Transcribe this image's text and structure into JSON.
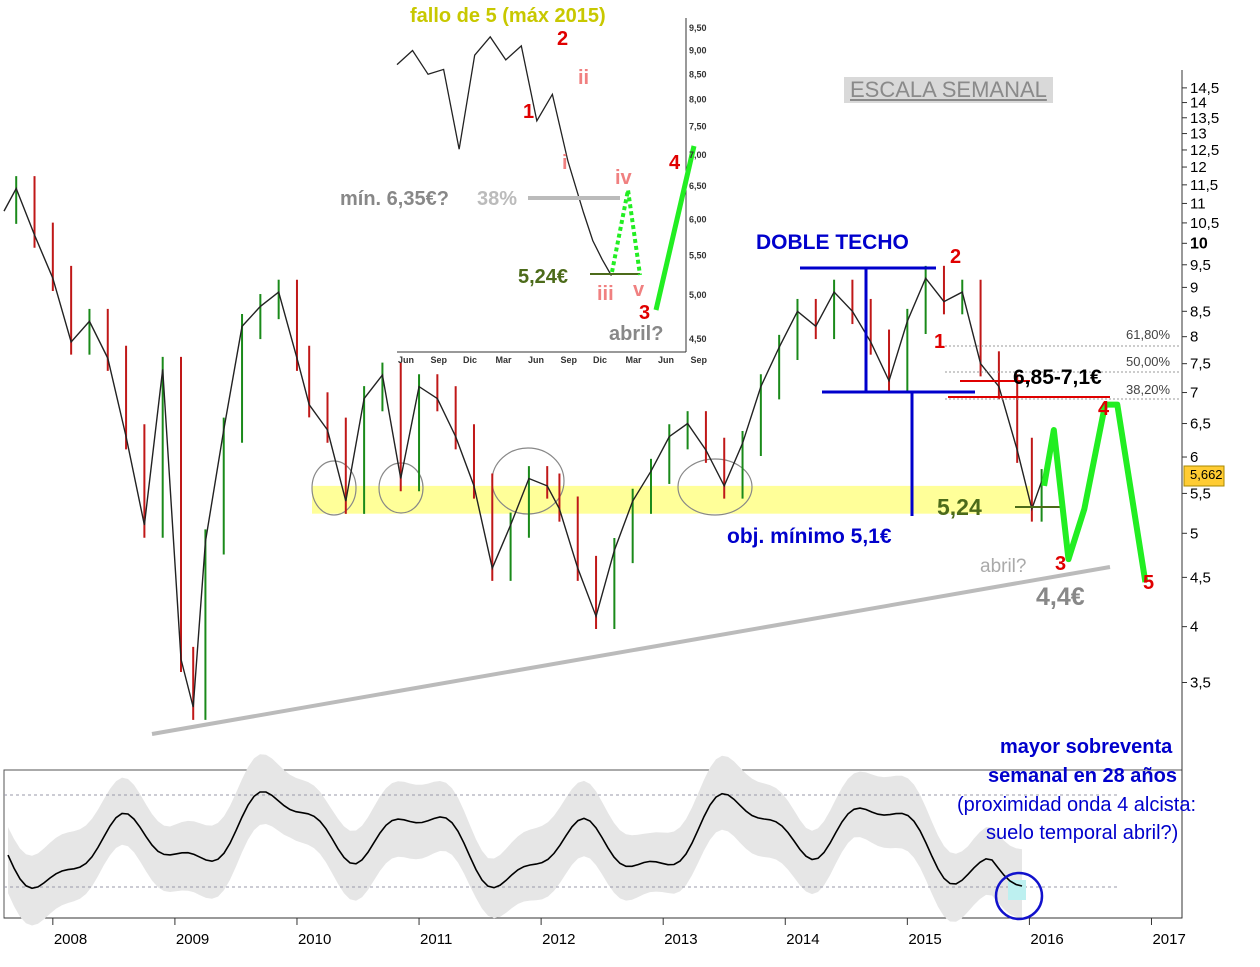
{
  "colors": {
    "price": "#222222",
    "up_candle": "#1a8a1a",
    "down_candle": "#c01818",
    "support_band": "#ffff99",
    "blue": "#0000cc",
    "green_projection": "#22ee22",
    "olive": "#4c6b1a",
    "trendline": "#bbbbbb",
    "red_label": "#e00000",
    "pink_label": "#f08080",
    "last_price_box": "#ffcc33"
  },
  "chart_data": [
    {
      "type": "line",
      "title": "ESCALA SEMANAL",
      "y_scale": "log",
      "ylim": [
        3.1,
        15.0
      ],
      "x_tick_labels": [
        "2008",
        "2009",
        "2010",
        "2011",
        "2012",
        "2013",
        "2014",
        "2015",
        "2016",
        "2017"
      ],
      "y_tick_labels": [
        "14,5",
        "14",
        "13,5",
        "13",
        "12,5",
        "12",
        "11,5",
        "11",
        "10,5",
        "10",
        "9,5",
        "9",
        "8,5",
        "8",
        "7,5",
        "7",
        "6,5",
        "6",
        "5,5",
        "5",
        "4,5",
        "4",
        "3,5"
      ],
      "last_price": "5,662",
      "series": [
        {
          "x": [
            2007.6,
            2007.7,
            2007.85,
            2008.0,
            2008.15,
            2008.3,
            2008.45,
            2008.6,
            2008.75,
            2008.9,
            2009.05,
            2009.15,
            2009.25,
            2009.4,
            2009.55,
            2009.7,
            2009.85,
            2010.0,
            2010.1,
            2010.25,
            2010.4,
            2010.55,
            2010.7,
            2010.85,
            2011.0,
            2011.15,
            2011.3,
            2011.45,
            2011.6,
            2011.75,
            2011.9,
            2012.05,
            2012.15,
            2012.3,
            2012.45,
            2012.6,
            2012.75,
            2012.9,
            2013.05,
            2013.2,
            2013.35,
            2013.5,
            2013.65,
            2013.8,
            2013.95,
            2014.1,
            2014.25,
            2014.4,
            2014.55,
            2014.7,
            2014.85,
            2015.0,
            2015.15,
            2015.3,
            2015.45,
            2015.6,
            2015.75,
            2015.9,
            2016.02,
            2016.1
          ],
          "values": [
            10.8,
            11.4,
            10.2,
            9.2,
            7.9,
            8.3,
            7.6,
            6.3,
            5.1,
            7.4,
            3.7,
            3.3,
            4.9,
            6.4,
            8.2,
            8.6,
            8.9,
            7.6,
            6.8,
            6.4,
            5.4,
            6.9,
            7.3,
            5.7,
            7.1,
            6.9,
            6.3,
            5.6,
            4.6,
            5.1,
            5.7,
            5.6,
            5.3,
            4.6,
            4.1,
            4.8,
            5.4,
            5.8,
            6.3,
            6.5,
            6.1,
            5.6,
            6.2,
            7.1,
            7.8,
            8.5,
            8.2,
            8.9,
            8.5,
            7.9,
            7.2,
            8.3,
            9.2,
            8.7,
            8.9,
            7.5,
            7.1,
            6.1,
            5.3,
            5.66
          ]
        }
      ],
      "support_zone": [
        5.24,
        5.6
      ],
      "projection": {
        "x": [
          2016.12,
          2016.2,
          2016.32,
          2016.45,
          2016.62,
          2016.72,
          2016.95
        ],
        "values": [
          5.6,
          6.4,
          4.7,
          5.3,
          6.8,
          6.8,
          4.45
        ]
      },
      "annotations": {
        "double_top": "DOBLE TECHO",
        "target_min": "obj. mínimo 5,1€",
        "support_value": "5,24",
        "resistance": "6,85-7,1€",
        "fib_618": "61,80%",
        "fib_50": "50,00%",
        "fib_382": "38,20%",
        "april": "abril?",
        "target_low": "4,4€",
        "wave_1": "1",
        "wave_2": "2",
        "wave_3": "3",
        "wave_4": "4",
        "wave_5": "5"
      }
    },
    {
      "type": "line",
      "title": "fallo de 5 (máx 2015)",
      "y_scale": "log",
      "ylim": [
        4.4,
        9.6
      ],
      "x_tick_labels": [
        "Jun",
        "Sep",
        "Dic",
        "Mar",
        "Jun",
        "Sep",
        "Dic",
        "Mar",
        "Jun",
        "Sep"
      ],
      "y_tick_labels": [
        "9,50",
        "9,00",
        "8,50",
        "8,00",
        "7,50",
        "7,00",
        "6,50",
        "6,00",
        "5,50",
        "5,00",
        "4,50"
      ],
      "series": [
        {
          "x": [
            0,
            0.5,
            1,
            1.5,
            2,
            2.5,
            3,
            3.5,
            4,
            4.5,
            5,
            5.5,
            6,
            6.3,
            6.6,
            6.9
          ],
          "values": [
            8.7,
            9.0,
            8.5,
            8.6,
            7.1,
            8.9,
            9.3,
            8.8,
            9.1,
            7.6,
            8.1,
            6.9,
            6.1,
            5.7,
            5.45,
            5.24
          ]
        }
      ],
      "annotations": {
        "min_label": "mín. 6,35€?",
        "min_pct": "38%",
        "low_label": "5,24€",
        "wave_1": "1",
        "wave_2": "2",
        "wave_3": "3",
        "wave_4": "4",
        "sub_i": "i",
        "sub_ii": "ii",
        "sub_iii": "iii",
        "sub_iv": "iv",
        "sub_v": "v",
        "april": "abril?"
      }
    },
    {
      "type": "line",
      "title": "",
      "annotation": [
        "mayor sobreventa",
        "semanal en 28 años",
        "(proximidad onda 4 alcista:",
        "suelo temporal abril?)"
      ]
    }
  ]
}
